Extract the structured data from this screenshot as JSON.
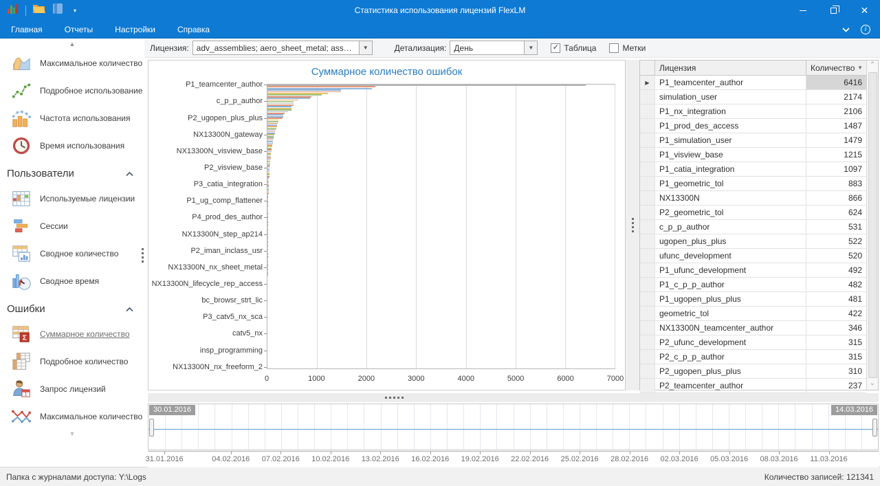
{
  "window": {
    "title": "Статистика использования лицензий FlexLM"
  },
  "icons": {
    "qat_dropdown": "▾",
    "menubar_chevron": "⌄",
    "info": "i",
    "close": "✕",
    "scroll_up": "▲",
    "scroll_down": "▼",
    "combo_arrow": "▼",
    "check": "✓",
    "sort_desc": "▼",
    "row_indicator": "▶",
    "table_scroll_up": "⌃",
    "table_scroll_down": "⌄"
  },
  "menu": {
    "items": [
      "Главная",
      "Отчеты",
      "Настройки",
      "Справка"
    ]
  },
  "toolbar": {
    "license_label": "Лицензия:",
    "license_value": "adv_assemblies; aero_sheet_metal; assembli...",
    "detail_label": "Детализация:",
    "detail_value": "День",
    "checkbox_table_label": "Таблица",
    "checkbox_table_checked": true,
    "checkbox_marks_label": "Метки",
    "checkbox_marks_checked": false
  },
  "sidebar": {
    "groups": [
      {
        "title": "",
        "items": [
          {
            "icon": "area-chart-icon",
            "label": "Максимальное количество"
          },
          {
            "icon": "line-chart-icon",
            "label": "Подробное использование"
          },
          {
            "icon": "frequency-chart-icon",
            "label": "Частота использования"
          },
          {
            "icon": "clock-icon",
            "label": "Время использования"
          }
        ]
      },
      {
        "title": "Пользователи",
        "items": [
          {
            "icon": "license-grid-icon",
            "label": "Используемые лицензии"
          },
          {
            "icon": "sessions-icon",
            "label": "Сессии"
          },
          {
            "icon": "summary-count-icon",
            "label": "Сводное количество"
          },
          {
            "icon": "summary-time-icon",
            "label": "Сводное время"
          }
        ]
      },
      {
        "title": "Ошибки",
        "items": [
          {
            "icon": "sigma-table-icon",
            "label": "Суммарное количество",
            "selected": true
          },
          {
            "icon": "detail-tables-icon",
            "label": "Подробное количество"
          },
          {
            "icon": "user-calendar-icon",
            "label": "Запрос лицензий"
          },
          {
            "icon": "max-lines-icon",
            "label": "Максимальное количество"
          }
        ]
      }
    ]
  },
  "chart_data": {
    "type": "bar",
    "orientation": "horizontal",
    "title": "Суммарное количество ошибок",
    "xlim": [
      0,
      7000
    ],
    "x_ticks": [
      0,
      1000,
      2000,
      3000,
      4000,
      5000,
      6000,
      7000
    ],
    "labels_shown": [
      "P1_teamcenter_author",
      "c_p_p_author",
      "P2_ugopen_plus_plus",
      "NX13300N_gateway",
      "NX13300N_visview_base",
      "P2_visview_base",
      "P3_catia_integration",
      "P1_ug_comp_flattener",
      "P4_prod_des_author",
      "NX13300N_step_ap214",
      "P2_iman_inclass_usr",
      "NX13300N_nx_sheet_metal",
      "NX13300N_lifecycle_rep_access",
      "bc_browsr_strt_lic",
      "P3_catv5_nx_sca",
      "catv5_nx",
      "insp_programming",
      "NX13300N_nx_freeform_2"
    ],
    "label_every_n_bars": 10,
    "values": [
      6416,
      2174,
      2106,
      1487,
      1479,
      1215,
      1097,
      883,
      866,
      624,
      531,
      522,
      520,
      492,
      482,
      481,
      422,
      346,
      315,
      315,
      310,
      237,
      225,
      213,
      200,
      188,
      176,
      165,
      155,
      146,
      138,
      130,
      123,
      116,
      110,
      104,
      98,
      93,
      88,
      83,
      79,
      75,
      71,
      67,
      64,
      60,
      57,
      54,
      51,
      48,
      46,
      43,
      41,
      39,
      37,
      35,
      33,
      31,
      30,
      28,
      27,
      25,
      24,
      23,
      22,
      21,
      20,
      19,
      18,
      17,
      16,
      15,
      15,
      14,
      13,
      13,
      12,
      12,
      11,
      11,
      10,
      10,
      9,
      9,
      8,
      8,
      8,
      7,
      7,
      7,
      6,
      6,
      6,
      5,
      5,
      5,
      5,
      4,
      4,
      4,
      4,
      4,
      3,
      3,
      3,
      3,
      3,
      3,
      2,
      2,
      2,
      2,
      2,
      2,
      2,
      2,
      1,
      1,
      1,
      1,
      1,
      1,
      1,
      1,
      1,
      1,
      1,
      1,
      1,
      1,
      1,
      1,
      1,
      1,
      1,
      1,
      1,
      1,
      1,
      1,
      1,
      1,
      1,
      1,
      1,
      1,
      1,
      1,
      1,
      1,
      1,
      1,
      1,
      1,
      1,
      1,
      1,
      1,
      1,
      1,
      1,
      1,
      1,
      1,
      1,
      1,
      1,
      1,
      1,
      1,
      1
    ],
    "palette": [
      "#b4b4b6",
      "#e49677",
      "#92b5da",
      "#90b0d5",
      "#dd9a74",
      "#e2c465",
      "#a1c286",
      "#d8886a",
      "#9cbbdd",
      "#e6ae6d",
      "#b2cc92",
      "#c6c6c8",
      "#e0a184",
      "#87add2",
      "#cfc06e",
      "#98bb80"
    ],
    "grid": true
  },
  "table": {
    "columns": [
      "Лицензия",
      "Количество"
    ],
    "selected_row": 0,
    "rows": [
      [
        "P1_teamcenter_author",
        6416
      ],
      [
        "simulation_user",
        2174
      ],
      [
        "P1_nx_integration",
        2106
      ],
      [
        "P1_prod_des_access",
        1487
      ],
      [
        "P1_simulation_user",
        1479
      ],
      [
        "P1_visview_base",
        1215
      ],
      [
        "P1_catia_integration",
        1097
      ],
      [
        "P1_geometric_tol",
        883
      ],
      [
        "NX13300N",
        866
      ],
      [
        "P2_geometric_tol",
        624
      ],
      [
        "c_p_p_author",
        531
      ],
      [
        "ugopen_plus_plus",
        522
      ],
      [
        "ufunc_development",
        520
      ],
      [
        "P1_ufunc_development",
        492
      ],
      [
        "P1_c_p_p_author",
        482
      ],
      [
        "P1_ugopen_plus_plus",
        481
      ],
      [
        "geometric_tol",
        422
      ],
      [
        "NX13300N_teamcenter_author",
        346
      ],
      [
        "P2_ufunc_development",
        315
      ],
      [
        "P2_c_p_p_author",
        315
      ],
      [
        "P2_ugopen_plus_plus",
        310
      ],
      [
        "P2_teamcenter_author",
        237
      ]
    ]
  },
  "timeline": {
    "start_label": "30.01.2016",
    "end_label": "14.03.2016",
    "total_days": 44,
    "line_color": "#5b9bd5",
    "ticks": [
      {
        "label": "31.01.2016",
        "day": 1
      },
      {
        "label": "04.02.2016",
        "day": 5
      },
      {
        "label": "07.02.2016",
        "day": 8
      },
      {
        "label": "10.02.2016",
        "day": 11
      },
      {
        "label": "13.02.2016",
        "day": 14
      },
      {
        "label": "16.02.2016",
        "day": 17
      },
      {
        "label": "19.02.2016",
        "day": 20
      },
      {
        "label": "22.02.2016",
        "day": 23
      },
      {
        "label": "25.02.2016",
        "day": 26
      },
      {
        "label": "28.02.2016",
        "day": 29
      },
      {
        "label": "02.03.2016",
        "day": 32
      },
      {
        "label": "05.03.2016",
        "day": 35
      },
      {
        "label": "08.03.2016",
        "day": 38
      },
      {
        "label": "11.03.2016",
        "day": 41
      }
    ]
  },
  "status": {
    "left": "Папка с журналами доступа: Y:\\Logs",
    "right": "Количество записей: 121341"
  }
}
